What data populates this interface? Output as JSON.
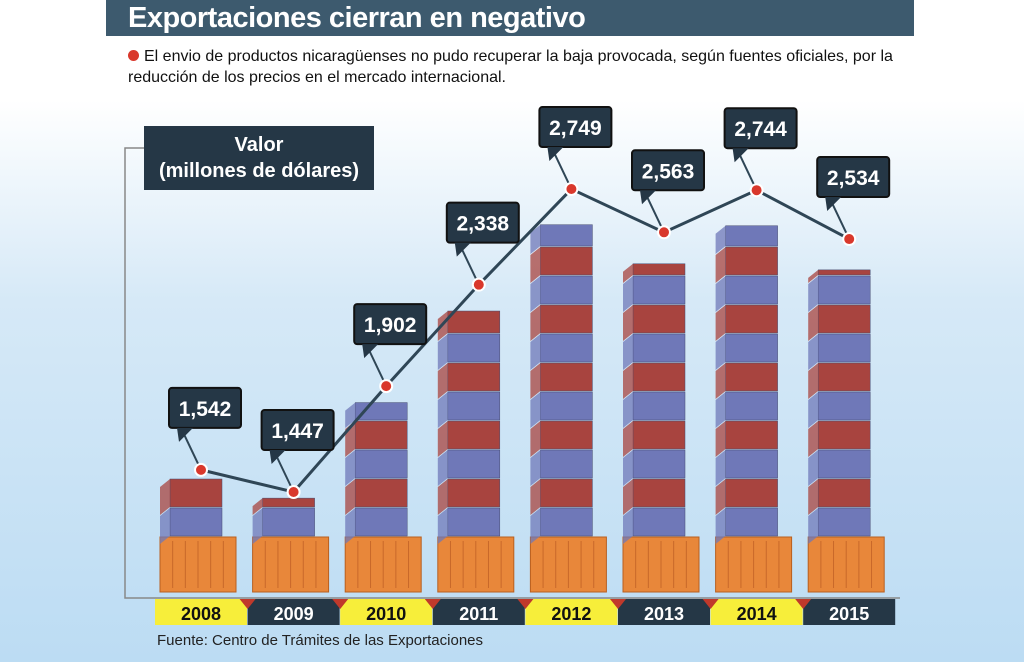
{
  "title": "Exportaciones cierran en negativo",
  "subtitle": "El envio de productos nicaragüenses no pudo recuperar la baja provocada, según fuentes oficiales, por la reducción de los precios en el mercado internacional.",
  "source": "Fuente: Centro de Trámites de las Exportaciones",
  "chart_data": {
    "type": "line",
    "title": "Exportaciones cierran en negativo",
    "ylabel_line1": "Valor",
    "ylabel_line2": "(millones de dólares)",
    "categories": [
      "2008",
      "2009",
      "2010",
      "2011",
      "2012",
      "2013",
      "2014",
      "2015"
    ],
    "values": [
      1542,
      1447,
      1902,
      2338,
      2749,
      2563,
      2744,
      2534
    ],
    "value_labels": [
      "1,542",
      "1,447",
      "1,902",
      "2,338",
      "2,749",
      "2,563",
      "2,744",
      "2,534"
    ],
    "colors": {
      "line": "#2f4656",
      "point": "#d9382c",
      "label_box": "#253746",
      "year_light": "#f7ee3a",
      "year_dark": "#253746",
      "container_orange": "#e8873a",
      "container_blue": "#6f78b8",
      "container_red": "#a8443f"
    }
  }
}
